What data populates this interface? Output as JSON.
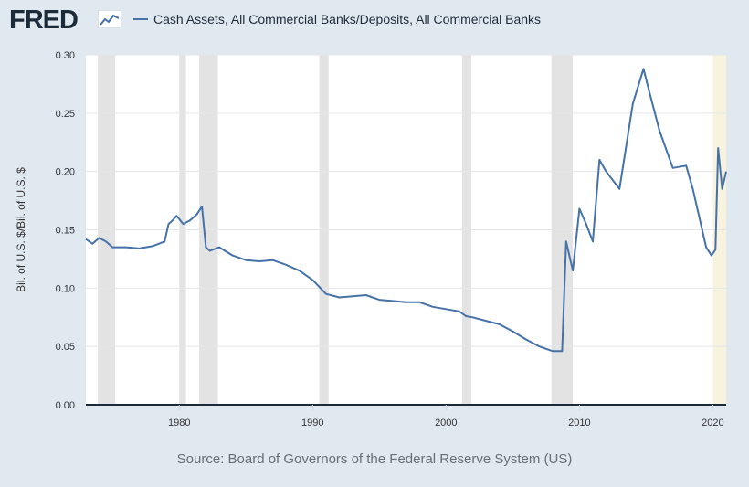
{
  "header": {
    "logo_text": "FRED",
    "logo_icon": "line-chart-icon",
    "legend_label": "Cash Assets, All Commercial Banks/Deposits, All Commercial Banks",
    "legend_color": "#4572a7"
  },
  "footer": {
    "source": "Source: Board of Governors of the Federal Reserve System (US)"
  },
  "colors": {
    "background": "#e1e9f0",
    "plot_background": "#ffffff",
    "recession": "#e3e3e3",
    "forecast_shade": "#f7f3de",
    "series": "#4572a7",
    "grid": "#e6e6e6"
  },
  "chart_data": {
    "type": "line",
    "title": "",
    "xlabel": "",
    "ylabel": "Bil. of U.S. $/Bil. of U.S. $",
    "xlim": [
      1973.0,
      2021.0
    ],
    "ylim": [
      0,
      0.3
    ],
    "yticks": [
      0.0,
      0.05,
      0.1,
      0.15,
      0.2,
      0.25,
      0.3
    ],
    "ytick_labels": [
      "0.00",
      "0.05",
      "0.10",
      "0.15",
      "0.20",
      "0.25",
      "0.30"
    ],
    "xticks": [
      1980,
      1990,
      2000,
      2010,
      2020
    ],
    "xtick_labels": [
      "1980",
      "1990",
      "2000",
      "2010",
      "2020"
    ],
    "grid": true,
    "legend_position": "top-left",
    "recessions": [
      [
        1973.9,
        1975.2
      ],
      [
        1980.0,
        1980.5
      ],
      [
        1981.5,
        1982.9
      ],
      [
        1990.5,
        1991.2
      ],
      [
        2001.2,
        2001.9
      ],
      [
        2007.9,
        2009.5
      ]
    ],
    "highlight_period": [
      2020.0,
      2021.0
    ],
    "series": [
      {
        "name": "Cash Assets, All Commercial Banks/Deposits, All Commercial Banks",
        "x": [
          1973.0,
          1973.5,
          1974.0,
          1974.5,
          1975.0,
          1976.0,
          1977.0,
          1978.0,
          1978.9,
          1979.2,
          1979.5,
          1979.8,
          1980.3,
          1980.8,
          1981.3,
          1981.7,
          1982.0,
          1982.3,
          1983.0,
          1984.0,
          1985.0,
          1986.0,
          1987.0,
          1988.0,
          1989.0,
          1990.0,
          1991.0,
          1992.0,
          1993.0,
          1994.0,
          1995.0,
          1996.0,
          1997.0,
          1998.0,
          1999.0,
          2000.0,
          2001.0,
          2001.5,
          2002.0,
          2003.0,
          2004.0,
          2005.0,
          2006.0,
          2007.0,
          2008.0,
          2008.7,
          2009.0,
          2009.5,
          2010.0,
          2010.5,
          2011.0,
          2011.5,
          2012.0,
          2013.0,
          2014.0,
          2014.8,
          2015.2,
          2016.0,
          2017.0,
          2018.0,
          2018.5,
          2019.0,
          2019.5,
          2019.9,
          2020.2,
          2020.4,
          2020.7,
          2021.0
        ],
        "y": [
          0.142,
          0.138,
          0.143,
          0.14,
          0.135,
          0.135,
          0.134,
          0.136,
          0.14,
          0.155,
          0.158,
          0.162,
          0.155,
          0.158,
          0.163,
          0.17,
          0.135,
          0.132,
          0.135,
          0.128,
          0.124,
          0.123,
          0.124,
          0.12,
          0.115,
          0.107,
          0.095,
          0.092,
          0.093,
          0.094,
          0.09,
          0.089,
          0.088,
          0.088,
          0.084,
          0.082,
          0.08,
          0.076,
          0.075,
          0.072,
          0.069,
          0.063,
          0.056,
          0.05,
          0.046,
          0.046,
          0.14,
          0.115,
          0.168,
          0.155,
          0.14,
          0.21,
          0.2,
          0.185,
          0.258,
          0.288,
          0.27,
          0.235,
          0.203,
          0.205,
          0.185,
          0.16,
          0.135,
          0.128,
          0.133,
          0.22,
          0.185,
          0.2
        ]
      }
    ]
  }
}
